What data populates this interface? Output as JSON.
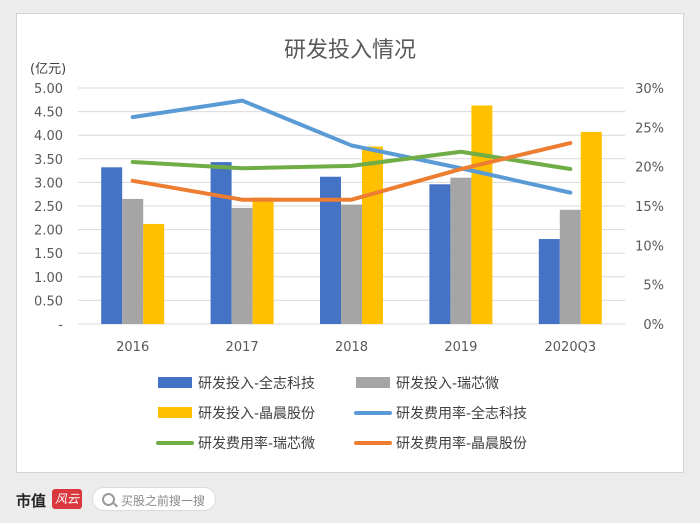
{
  "chart_data": {
    "type": "bar",
    "title": "研发投入情况",
    "unit_label": "(亿元)",
    "categories": [
      "2016",
      "2017",
      "2018",
      "2019",
      "2020Q3"
    ],
    "y_left": {
      "ticks": [
        "5.00",
        "4.50",
        "4.00",
        "3.50",
        "3.00",
        "2.50",
        "2.00",
        "1.50",
        "1.00",
        "0.50",
        "-"
      ],
      "ylim": [
        0,
        5
      ]
    },
    "y_right": {
      "ticks": [
        "30%",
        "25%",
        "20%",
        "15%",
        "10%",
        "5%",
        "0%"
      ],
      "ylim": [
        0,
        0.3
      ]
    },
    "bar_series": [
      {
        "name": "研发投入-全志科技",
        "color": "#4472c4",
        "values": [
          3.32,
          3.43,
          3.12,
          2.96,
          1.8
        ]
      },
      {
        "name": "研发投入-瑞芯微",
        "color": "#a5a5a5",
        "values": [
          2.65,
          2.46,
          2.53,
          3.1,
          2.42
        ]
      },
      {
        "name": "研发投入-晶晨股份",
        "color": "#ffc000",
        "values": [
          2.12,
          2.68,
          3.76,
          4.63,
          4.07
        ]
      }
    ],
    "line_series": [
      {
        "name": "研发费用率-全志科技",
        "color": "#5b9bd5",
        "values": [
          0.263,
          0.284,
          0.227,
          0.198,
          0.167
        ]
      },
      {
        "name": "研发费用率-瑞芯微",
        "color": "#70ad47",
        "values": [
          0.206,
          0.198,
          0.201,
          0.219,
          0.197
        ]
      },
      {
        "name": "研发费用率-晶晨股份",
        "color": "#ed7d31",
        "values": [
          0.182,
          0.158,
          0.158,
          0.197,
          0.23
        ]
      }
    ],
    "grid": true,
    "legend_position": "bottom"
  },
  "footer": {
    "brand": "市值",
    "brand_mark": "风云",
    "search_placeholder": "买股之前搜一搜",
    "search_icon": "search-icon"
  }
}
